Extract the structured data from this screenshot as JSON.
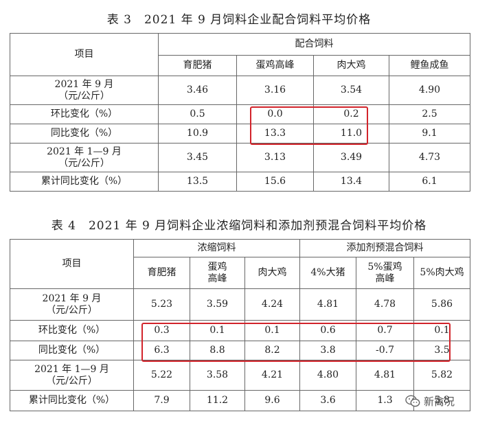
{
  "table3": {
    "title": "表 3　2021 年 9 月饲料企业配合饲料平均价格",
    "item_header": "项目",
    "group_header": "配合饲料",
    "columns": [
      "育肥猪",
      "蛋鸡高峰",
      "肉大鸡",
      "鲤鱼成鱼"
    ],
    "rows": [
      {
        "label": "2021 年 9 月\n（元/公斤）",
        "values": [
          "3.46",
          "3.16",
          "3.54",
          "4.90"
        ]
      },
      {
        "label": "环比变化（%）",
        "values": [
          "0.5",
          "0.0",
          "0.2",
          "2.5"
        ]
      },
      {
        "label": "同比变化（%）",
        "values": [
          "10.9",
          "13.3",
          "11.0",
          "9.1"
        ]
      },
      {
        "label": "2021 年 1—9 月\n（元/公斤）",
        "values": [
          "3.45",
          "3.13",
          "3.49",
          "4.73"
        ]
      },
      {
        "label": "累计同比变化（%）",
        "values": [
          "13.5",
          "15.6",
          "13.4",
          "6.1"
        ]
      }
    ]
  },
  "table4": {
    "title": "表 4　2021 年 9 月饲料企业浓缩饲料和添加剂预混合饲料平均价格",
    "item_header": "项目",
    "group_headers": [
      "浓缩饲料",
      "添加剂预混合饲料"
    ],
    "columns": [
      "育肥猪",
      "蛋鸡\n高峰",
      "肉大鸡",
      "4%大猪",
      "5%蛋鸡\n高峰",
      "5%肉大鸡"
    ],
    "rows": [
      {
        "label": "2021 年 9 月\n（元/公斤）",
        "values": [
          "5.23",
          "3.59",
          "4.24",
          "4.81",
          "4.78",
          "5.86"
        ]
      },
      {
        "label": "环比变化（%）",
        "values": [
          "0.3",
          "0.1",
          "0.1",
          "0.6",
          "0.7",
          "0.1"
        ]
      },
      {
        "label": "同比变化（%）",
        "values": [
          "6.3",
          "8.8",
          "8.2",
          "3.8",
          "-0.7",
          "3.5"
        ]
      },
      {
        "label": "2021 年 1—9 月\n（元/公斤）",
        "values": [
          "5.22",
          "3.58",
          "4.21",
          "4.80",
          "4.81",
          "5.82"
        ]
      },
      {
        "label": "累计同比变化（%）",
        "values": [
          "7.9",
          "11.2",
          "9.6",
          "3.6",
          "1.3",
          "5.8"
        ]
      }
    ]
  },
  "highlight_color": "#d2232a",
  "watermark": {
    "text": "新禽况",
    "icon": "wechat-icon"
  }
}
